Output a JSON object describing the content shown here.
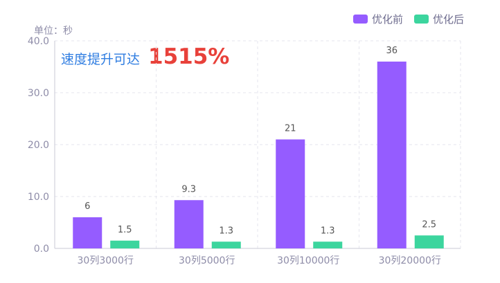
{
  "chart_data": {
    "type": "bar",
    "unit_label": "单位：秒",
    "categories": [
      "30列3000行",
      "30列5000行",
      "30列10000行",
      "30列20000行"
    ],
    "series": [
      {
        "name": "优化前",
        "color": "#955cff",
        "values": [
          6,
          9.3,
          21,
          36
        ],
        "labels": [
          "6",
          "9.3",
          "21",
          "36"
        ]
      },
      {
        "name": "优化后",
        "color": "#3cd59e",
        "values": [
          1.5,
          1.3,
          1.3,
          2.5
        ],
        "labels": [
          "1.5",
          "1.3",
          "1.3",
          "2.5"
        ]
      }
    ],
    "ylim": [
      0,
      40
    ],
    "yticks": [
      "0.0",
      "10.0",
      "20.0",
      "30.0",
      "40.0"
    ],
    "grid": true,
    "legend": "top-right",
    "annotation": {
      "text": "速度提升可达",
      "value": "1515%"
    }
  }
}
